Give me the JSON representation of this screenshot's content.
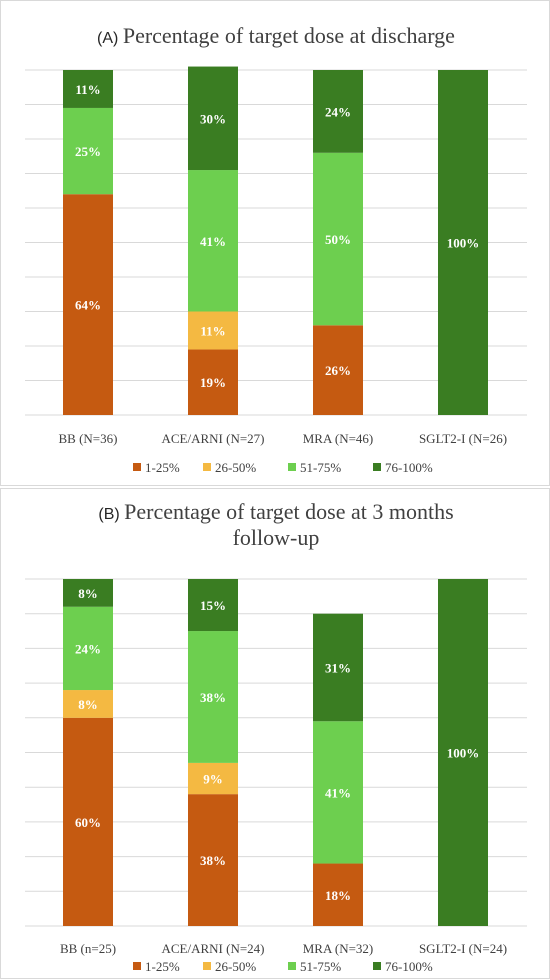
{
  "colors": {
    "1-25%": "#c55a11",
    "26-50%": "#f4b942",
    "51-75%": "#6dcf4f",
    "76-100%": "#3a7d22",
    "grid": "#d9d9d9"
  },
  "chart_data": [
    {
      "type": "bar",
      "stacked": true,
      "panel_letter": "(A)",
      "title": "Percentage of target dose at discharge",
      "categories": [
        "BB (N=36)",
        "ACE/ARNI (N=27)",
        "MRA (N=46)",
        "SGLT2-I (N=26)"
      ],
      "ylim": [
        0,
        100
      ],
      "grid": true,
      "legend": "bottom",
      "series": [
        {
          "name": "1-25%",
          "values": [
            64,
            19,
            26,
            0
          ],
          "labels": [
            "64%",
            "19%",
            "26%",
            ""
          ]
        },
        {
          "name": "26-50%",
          "values": [
            0,
            11,
            0,
            0
          ],
          "labels": [
            "",
            "11%",
            "",
            ""
          ]
        },
        {
          "name": "51-75%",
          "values": [
            25,
            41,
            50,
            0
          ],
          "labels": [
            "25%",
            "41%",
            "50%",
            ""
          ]
        },
        {
          "name": "76-100%",
          "values": [
            11,
            30,
            24,
            100
          ],
          "labels": [
            "11%",
            "30%",
            "24%",
            "100%"
          ]
        }
      ]
    },
    {
      "type": "bar",
      "stacked": true,
      "panel_letter": "(B)",
      "title": "Percentage of target dose at 3 months follow-up",
      "title_lines": [
        "Percentage of target dose at 3 months",
        "follow-up"
      ],
      "categories": [
        "BB (n=25)",
        "ACE/ARNI (N=24)",
        "MRA (N=32)",
        "SGLT2-I (N=24)"
      ],
      "ylim": [
        0,
        100
      ],
      "grid": true,
      "legend": "bottom",
      "series": [
        {
          "name": "1-25%",
          "values": [
            60,
            38,
            18,
            0
          ],
          "labels": [
            "60%",
            "38%",
            "18%",
            ""
          ]
        },
        {
          "name": "26-50%",
          "values": [
            8,
            9,
            0,
            0
          ],
          "labels": [
            "8%",
            "9%",
            "",
            ""
          ]
        },
        {
          "name": "51-75%",
          "values": [
            24,
            38,
            41,
            0
          ],
          "labels": [
            "24%",
            "38%",
            "41%",
            ""
          ]
        },
        {
          "name": "76-100%",
          "values": [
            8,
            15,
            31,
            100
          ],
          "labels": [
            "8%",
            "15%",
            "31%",
            "100%"
          ]
        }
      ]
    }
  ]
}
